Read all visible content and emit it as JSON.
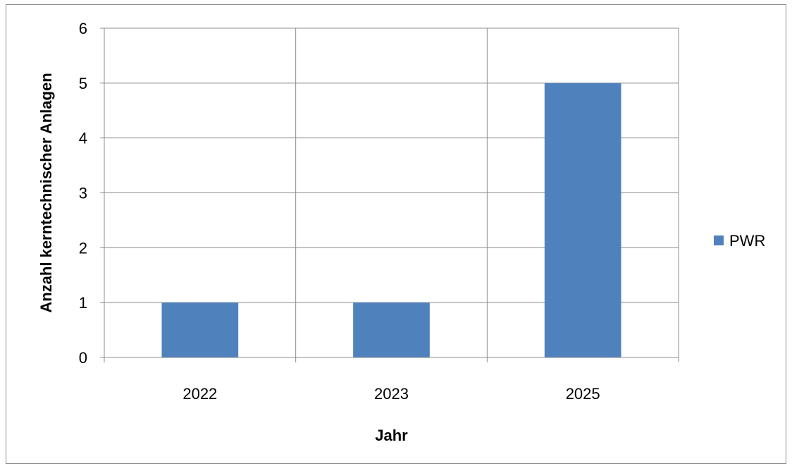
{
  "chart_data": {
    "type": "bar",
    "categories": [
      "2022",
      "2023",
      "2025"
    ],
    "series": [
      {
        "name": "PWR",
        "values": [
          1,
          1,
          5
        ],
        "color": "#4f81bd"
      }
    ],
    "xlabel": "Jahr",
    "ylabel": "Anzahl kerntechnischer Anlagen",
    "ylim": [
      0,
      6
    ],
    "yticks": [
      0,
      1,
      2,
      3,
      4,
      5,
      6
    ],
    "grid": true,
    "legend_position": "right"
  }
}
